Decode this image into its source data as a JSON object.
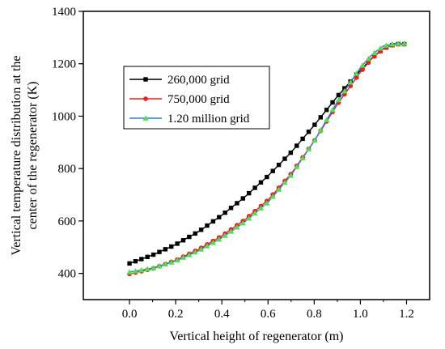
{
  "chart_data": {
    "type": "line",
    "title": "",
    "xlabel": "Vertical height of regenerator (m)",
    "ylabel_lines": [
      "Vertical temperature distribution at the",
      "center of the regenerator (K)"
    ],
    "xlim": [
      -0.2,
      1.3
    ],
    "ylim": [
      300,
      1400
    ],
    "xticks": [
      0.0,
      0.2,
      0.4,
      0.6,
      0.8,
      1.0,
      1.2
    ],
    "xtick_labels": [
      "0.0",
      "0.2",
      "0.4",
      "0.6",
      "0.8",
      "1.0",
      "1.2"
    ],
    "yticks": [
      400,
      600,
      800,
      1000,
      1200,
      1400
    ],
    "ytick_labels": [
      "400",
      "600",
      "800",
      "1000",
      "1200",
      "1400"
    ],
    "grid": false,
    "legend_position": "upper-left",
    "series": [
      {
        "name": "260,000 grid",
        "color": "#000000",
        "marker": "square",
        "points": [
          [
            0.0,
            438
          ],
          [
            0.1,
            470
          ],
          [
            0.2,
            510
          ],
          [
            0.3,
            560
          ],
          [
            0.4,
            622
          ],
          [
            0.5,
            692
          ],
          [
            0.6,
            772
          ],
          [
            0.7,
            862
          ],
          [
            0.8,
            965
          ],
          [
            0.9,
            1075
          ],
          [
            1.0,
            1175
          ],
          [
            1.05,
            1222
          ],
          [
            1.1,
            1258
          ],
          [
            1.15,
            1275
          ],
          [
            1.19,
            1275
          ]
        ]
      },
      {
        "name": "750,000 grid",
        "color": "#e8221c",
        "marker": "circle",
        "points": [
          [
            0.0,
            398
          ],
          [
            0.1,
            418
          ],
          [
            0.2,
            450
          ],
          [
            0.3,
            492
          ],
          [
            0.4,
            543
          ],
          [
            0.5,
            605
          ],
          [
            0.6,
            680
          ],
          [
            0.7,
            780
          ],
          [
            0.8,
            905
          ],
          [
            0.9,
            1045
          ],
          [
            1.0,
            1168
          ],
          [
            1.05,
            1220
          ],
          [
            1.1,
            1257
          ],
          [
            1.15,
            1275
          ],
          [
            1.19,
            1275
          ]
        ]
      },
      {
        "name": "1.20 million grid",
        "color": "#2a7de1",
        "marker": "triangle",
        "marker_color": "#4ee04e",
        "points": [
          [
            0.0,
            405
          ],
          [
            0.1,
            420
          ],
          [
            0.2,
            448
          ],
          [
            0.3,
            487
          ],
          [
            0.4,
            536
          ],
          [
            0.5,
            597
          ],
          [
            0.6,
            672
          ],
          [
            0.7,
            775
          ],
          [
            0.8,
            905
          ],
          [
            0.9,
            1055
          ],
          [
            1.0,
            1185
          ],
          [
            1.05,
            1235
          ],
          [
            1.1,
            1268
          ],
          [
            1.15,
            1277
          ],
          [
            1.19,
            1277
          ]
        ]
      }
    ]
  }
}
